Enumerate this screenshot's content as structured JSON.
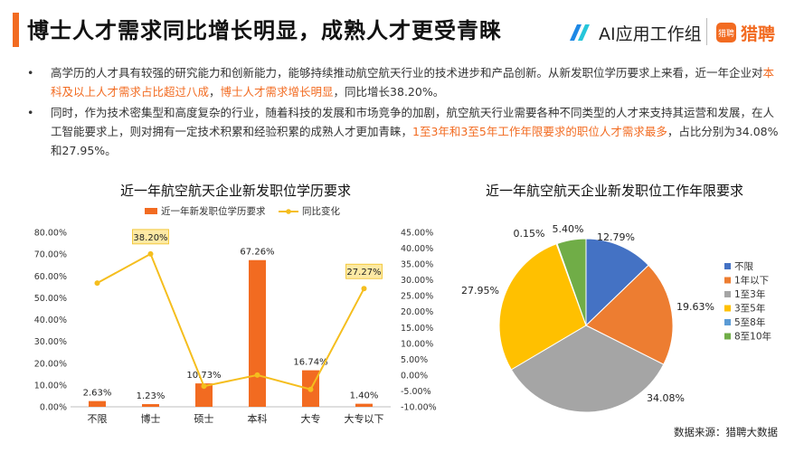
{
  "header": {
    "title": "博士人才需求同比增长明显，成熟人才更受青睐",
    "logo_ai": "AI应用工作组",
    "logo_lp_mark": "猎聘",
    "logo_lp": "猎聘",
    "accent_color": "#f26b21"
  },
  "bullets": [
    {
      "marker": "•",
      "segments": [
        {
          "text": "高学历的人才具有较强的研究能力和创新能力，能够持续推动航空航天行业的技术进步和产品创新。从新发职位学历要求上来看，近一年企业对",
          "hl": false
        },
        {
          "text": "本科及以上人才需求占比超过八成",
          "hl": true
        },
        {
          "text": "，",
          "hl": false
        },
        {
          "text": "博士人才需求增长明显",
          "hl": true
        },
        {
          "text": "，同比增长38.20%。",
          "hl": false
        }
      ]
    },
    {
      "marker": "•",
      "segments": [
        {
          "text": "同时，作为技术密集型和高度复杂的行业，随着科技的发展和市场竞争的加剧，航空航天行业需要各种不同类型的人才来支持其运营和发展，在人工智能要求上，则对拥有一定技术积累和经验积累的成熟人才更加青睐，",
          "hl": false
        },
        {
          "text": "1至3年和3至5年工作年限要求的职位人才需求最多",
          "hl": true
        },
        {
          "text": "，占比分别为34.08%和27.95%。",
          "hl": false
        }
      ]
    }
  ],
  "chart_data": [
    {
      "type": "bar",
      "title": "近一年航空航天企业新发职位学历要求",
      "categories": [
        "不限",
        "博士",
        "硕士",
        "本科",
        "大专",
        "大专以下"
      ],
      "series": [
        {
          "name": "近一年新发职位学历要求",
          "type": "bar",
          "axis": "left",
          "color": "#f26b21",
          "values": [
            2.63,
            1.23,
            10.73,
            67.26,
            16.74,
            1.4
          ],
          "labels": [
            "2.63%",
            "1.23%",
            "10.73%",
            "67.26%",
            "16.74%",
            "1.40%"
          ]
        },
        {
          "name": "同比变化",
          "type": "line",
          "axis": "right",
          "color": "#f5be1e",
          "values": [
            29.0,
            38.2,
            -3.5,
            0.0,
            -4.5,
            27.27
          ],
          "highlight_labels": [
            {
              "index": 1,
              "text": "38.20%"
            },
            {
              "index": 5,
              "text": "27.27%"
            }
          ]
        }
      ],
      "left_axis": {
        "ylim": [
          0,
          80
        ],
        "step": 10,
        "ticks": [
          "0.00%",
          "10.00%",
          "20.00%",
          "30.00%",
          "40.00%",
          "50.00%",
          "60.00%",
          "70.00%",
          "80.00%"
        ]
      },
      "right_axis": {
        "ylim": [
          -10,
          45
        ],
        "step": 5,
        "ticks": [
          "-10.00%",
          "-5.00%",
          "0.00%",
          "5.00%",
          "10.00%",
          "15.00%",
          "20.00%",
          "25.00%",
          "30.00%",
          "35.00%",
          "40.00%",
          "45.00%"
        ]
      },
      "legend": "top"
    },
    {
      "type": "pie",
      "title": "近一年航空航天企业新发职位工作年限要求",
      "slices": [
        {
          "label": "不限",
          "value": 12.79,
          "text": "12.79%",
          "color": "#4472c4"
        },
        {
          "label": "1年以下",
          "value": 19.63,
          "text": "19.63%",
          "color": "#ed7d31"
        },
        {
          "label": "1至3年",
          "value": 34.08,
          "text": "34.08%",
          "color": "#a5a5a5"
        },
        {
          "label": "3至5年",
          "value": 27.95,
          "text": "27.95%",
          "color": "#ffc000"
        },
        {
          "label": "5至8年",
          "value": 0.15,
          "text": "0.15%",
          "color": "#5b9bd5"
        },
        {
          "label": "8至10年",
          "value": 5.4,
          "text": "5.40%",
          "color": "#70ad47"
        }
      ],
      "legend": "right"
    }
  ],
  "source": "数据来源：猎聘大数据"
}
